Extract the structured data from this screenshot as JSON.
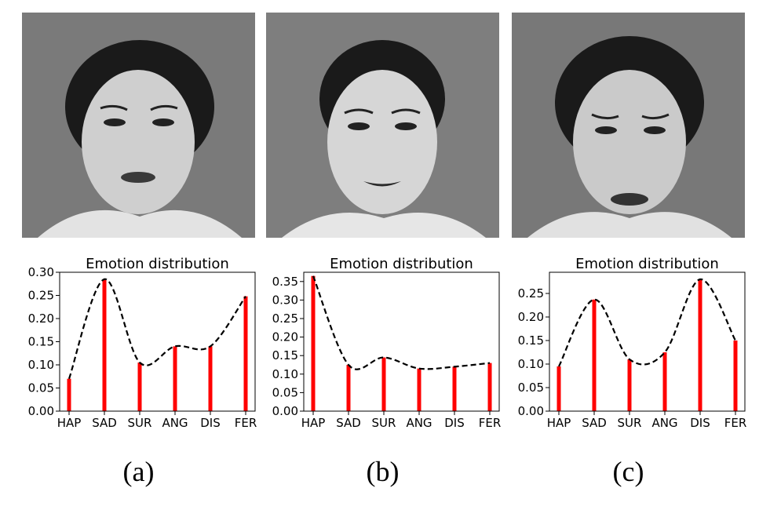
{
  "figure": {
    "captions": [
      "(a)",
      "(b)",
      "(c)"
    ]
  },
  "colors": {
    "bar": "#ff0000",
    "curve": "#000000",
    "photo_bg": "#6f6f6f"
  },
  "chart_data": [
    {
      "type": "bar",
      "title": "Emotion distribution",
      "categories": [
        "HAP",
        "SAD",
        "SUR",
        "ANG",
        "DIS",
        "FER"
      ],
      "values": [
        0.07,
        0.285,
        0.105,
        0.14,
        0.14,
        0.248
      ],
      "ylim": [
        0,
        0.3
      ],
      "yticks": [
        "0.00",
        "0.05",
        "0.10",
        "0.15",
        "0.20",
        "0.25",
        "0.30"
      ],
      "ytick_values": [
        0,
        0.05,
        0.1,
        0.15,
        0.2,
        0.25,
        0.3
      ],
      "curve": "dashed-smooth",
      "grid": false
    },
    {
      "type": "bar",
      "title": "Emotion distribution",
      "categories": [
        "HAP",
        "SAD",
        "SUR",
        "ANG",
        "DIS",
        "FER"
      ],
      "values": [
        0.365,
        0.125,
        0.145,
        0.115,
        0.12,
        0.13
      ],
      "ylim": [
        0,
        0.375
      ],
      "yticks": [
        "0.00",
        "0.05",
        "0.10",
        "0.15",
        "0.20",
        "0.25",
        "0.30",
        "0.35"
      ],
      "ytick_values": [
        0,
        0.05,
        0.1,
        0.15,
        0.2,
        0.25,
        0.3,
        0.35
      ],
      "curve": "dashed-smooth",
      "grid": false
    },
    {
      "type": "bar",
      "title": "Emotion distribution",
      "categories": [
        "HAP",
        "SAD",
        "SUR",
        "ANG",
        "DIS",
        "FER"
      ],
      "values": [
        0.095,
        0.237,
        0.11,
        0.125,
        0.28,
        0.15
      ],
      "ylim": [
        0,
        0.295
      ],
      "yticks": [
        "0.00",
        "0.05",
        "0.10",
        "0.15",
        "0.20",
        "0.25"
      ],
      "ytick_values": [
        0,
        0.05,
        0.1,
        0.15,
        0.2,
        0.25
      ],
      "curve": "dashed-smooth",
      "grid": false
    }
  ]
}
